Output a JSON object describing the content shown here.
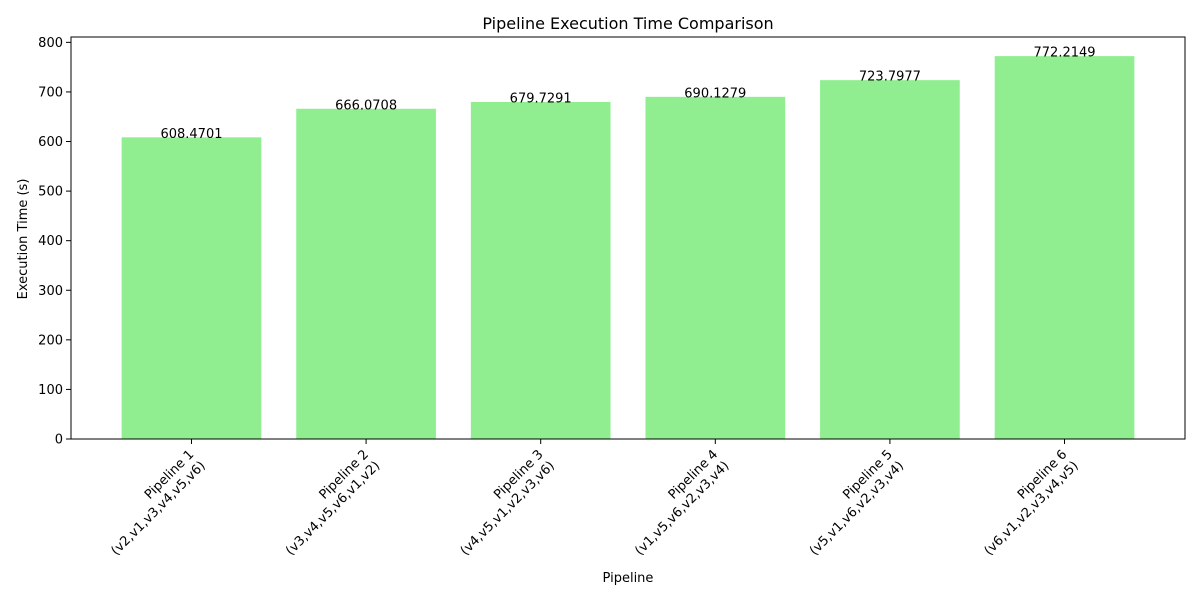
{
  "chart_data": {
    "type": "bar",
    "title": "Pipeline Execution Time Comparison",
    "xlabel": "Pipeline",
    "ylabel": "Execution Time (s)",
    "categories": [
      [
        "Pipeline 1",
        "(v2,v1,v3,v4,v5,v6)"
      ],
      [
        "Pipeline 2",
        "(v3,v4,v5,v6,v1,v2)"
      ],
      [
        "Pipeline 3",
        "(v4,v5,v1,v2,v3,v6)"
      ],
      [
        "Pipeline 4",
        "(v1,v5,v6,v2,v3,v4)"
      ],
      [
        "Pipeline 5",
        "(v5,v1,v6,v2,v3,v4)"
      ],
      [
        "Pipeline 6",
        "(v6,v1,v2,v3,v4,v5)"
      ]
    ],
    "values": [
      608.4701,
      666.0708,
      679.7291,
      690.1279,
      723.7977,
      772.2149
    ],
    "value_labels": [
      "608.4701",
      "666.0708",
      "679.7291",
      "690.1279",
      "723.7977",
      "772.2149"
    ],
    "ylim": [
      0,
      810.8
    ],
    "yticks": [
      0,
      100,
      200,
      300,
      400,
      500,
      600,
      700,
      800
    ],
    "bar_color": "#90ee90",
    "grid": false,
    "legend": false
  }
}
